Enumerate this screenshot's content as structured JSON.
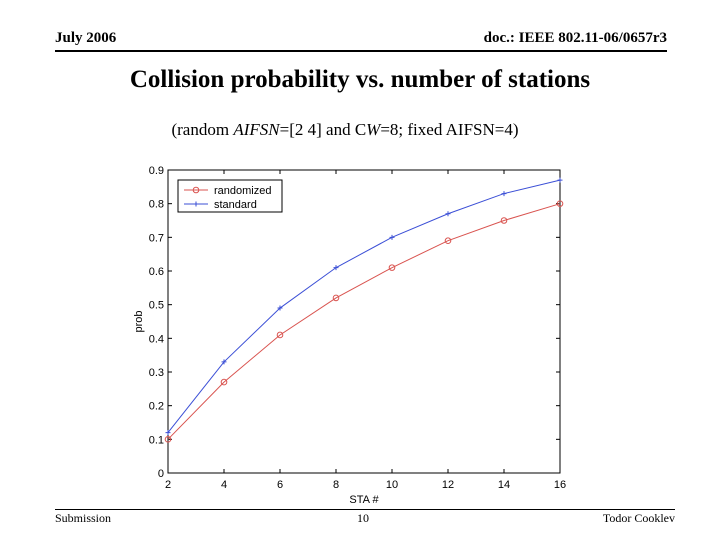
{
  "header": {
    "date": "July 2006",
    "doc_id": "doc.: IEEE 802.11-06/0657r3"
  },
  "slide": {
    "title": "Collision probability vs. number of stations",
    "subtitle": {
      "prefix": "(random ",
      "aifsn_italic": "AIFSN",
      "mid": "=[2 4] and C",
      "w_italic": "W",
      "suffix": "=8; fixed AIFSN=4)"
    }
  },
  "footer": {
    "left": "Submission",
    "page": "10",
    "author": "Todor Cooklev"
  },
  "colors": {
    "randomized": "#d9534f",
    "standard": "#3b4fd6",
    "axis": "#000000",
    "grid": "#dddddd"
  },
  "chart_data": {
    "type": "line",
    "title": "",
    "xlabel": "STA #",
    "ylabel": "prob",
    "xlim": [
      2,
      16
    ],
    "ylim": [
      0,
      0.9
    ],
    "xticks": [
      "2",
      "4",
      "6",
      "8",
      "10",
      "12",
      "14",
      "16"
    ],
    "yticks": [
      "0",
      "0.1",
      "0.2",
      "0.3",
      "0.4",
      "0.5",
      "0.6",
      "0.7",
      "0.8",
      "0.9"
    ],
    "x": [
      2,
      4,
      6,
      8,
      10,
      12,
      14,
      16
    ],
    "legend_position": "top-left",
    "series": [
      {
        "name": "randomized",
        "marker": "circle",
        "values": [
          0.1,
          0.27,
          0.41,
          0.52,
          0.61,
          0.69,
          0.75,
          0.8
        ]
      },
      {
        "name": "standard",
        "marker": "plus",
        "values": [
          0.12,
          0.33,
          0.49,
          0.61,
          0.7,
          0.77,
          0.83,
          0.87
        ]
      }
    ]
  }
}
